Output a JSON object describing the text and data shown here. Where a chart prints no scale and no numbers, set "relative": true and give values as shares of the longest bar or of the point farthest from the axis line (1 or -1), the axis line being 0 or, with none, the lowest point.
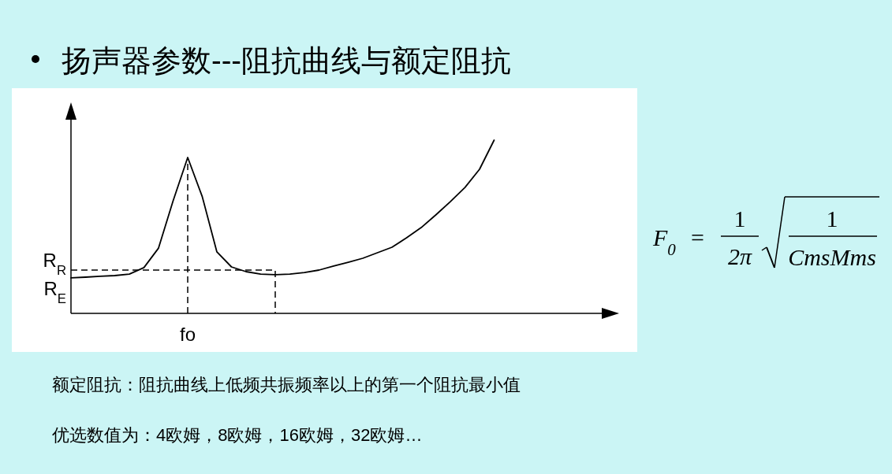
{
  "chart_data": {
    "type": "line",
    "relative": true,
    "title": "扬声器参数---阻抗曲线与额定阻抗",
    "color": "#000000",
    "categories": [
      null,
      null,
      null,
      null,
      null,
      null,
      null,
      null,
      null,
      null,
      null,
      null,
      null,
      null,
      null,
      null,
      null,
      null,
      null,
      null,
      null,
      null,
      null,
      null,
      null,
      null,
      null,
      null,
      null,
      null
    ],
    "values": [
      0.205,
      0.209,
      0.214,
      0.218,
      0.227,
      0.264,
      0.377,
      0.65,
      0.9,
      0.673,
      0.355,
      0.268,
      0.241,
      0.227,
      0.223,
      0.227,
      0.236,
      0.25,
      0.273,
      0.295,
      0.318,
      0.35,
      0.382,
      0.436,
      0.495,
      0.568,
      0.645,
      0.727,
      0.832,
      1.0
    ],
    "ref_lines": [
      {
        "axis": "y",
        "value": 0.25,
        "label": "R$_{R}$",
        "line_style": "dashed",
        "color": "#000000"
      }
    ],
    "annotations": [
      "R$_{E}$",
      "fo",
      "F$_{0}$",
      "=",
      "1",
      "2π",
      "1",
      "CmsMms",
      "额定阻抗：阻抗曲线上低频共振频率以上的第一个阻抗最小值",
      "优选数值为：4欧姆，8欧姆，16欧姆，32欧姆…"
    ]
  }
}
